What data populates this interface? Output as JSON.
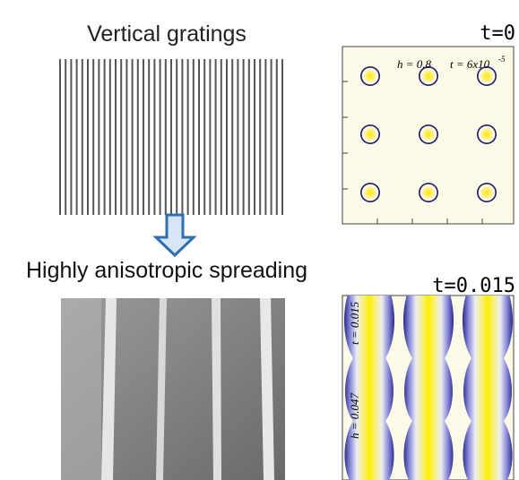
{
  "left": {
    "top_title": "Vertical gratings",
    "bottom_title": "Highly anisotropic spreading"
  },
  "right": {
    "top_time": "t=0",
    "bottom_time": "t=0.015",
    "panel1": {
      "h_label": "h = 0.8",
      "t_label": "t = 6x10",
      "t_exponent": "-5"
    },
    "panel2": {
      "h_label": "h = 0.047",
      "t_label": "t = 0.015"
    }
  }
}
